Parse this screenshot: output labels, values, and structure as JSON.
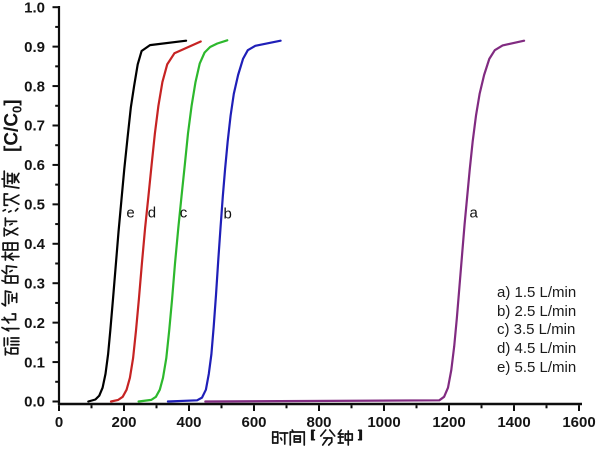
{
  "chart_data": {
    "type": "line",
    "title": "",
    "xlabel": "时间【分钟】",
    "ylabel": "硫化氢的相对浓度 [C/C0]",
    "ylabel_cjk": "硫化氢的相对浓度",
    "ylabel_unit": {
      "pre": "[C/C",
      "sub": "0",
      "post": "]"
    },
    "xlim": [
      0,
      1600
    ],
    "ylim": [
      0.0,
      1.0
    ],
    "x_major_step": 200,
    "x_minor_step": 100,
    "y_major_step": 0.1,
    "y_minor_step": 0.05,
    "xticks": [
      "0",
      "200",
      "400",
      "600",
      "800",
      "1000",
      "1200",
      "1400",
      "1600"
    ],
    "yticks": [
      "0.0",
      "0.1",
      "0.2",
      "0.3",
      "0.4",
      "0.5",
      "0.6",
      "0.7",
      "0.8",
      "0.9",
      "1.0"
    ],
    "grid": false,
    "plateau": 0.915,
    "series": [
      {
        "name": "e",
        "flow": "5.5 L/min",
        "color": "#000000",
        "points": [
          [
            90,
            0
          ],
          [
            112,
            0.005
          ],
          [
            124,
            0.015
          ],
          [
            134,
            0.035
          ],
          [
            143,
            0.07
          ],
          [
            151,
            0.12
          ],
          [
            158,
            0.18
          ],
          [
            166,
            0.26
          ],
          [
            174,
            0.34
          ],
          [
            183,
            0.43
          ],
          [
            192,
            0.51
          ],
          [
            201,
            0.59
          ],
          [
            211,
            0.67
          ],
          [
            221,
            0.745
          ],
          [
            231,
            0.8
          ],
          [
            242,
            0.855
          ],
          [
            254,
            0.889
          ],
          [
            280,
            0.904
          ],
          [
            391,
            0.915
          ]
        ]
      },
      {
        "name": "d",
        "flow": "4.5 L/min",
        "color": "#c62323",
        "points": [
          [
            160,
            0
          ],
          [
            182,
            0.004
          ],
          [
            196,
            0.012
          ],
          [
            208,
            0.03
          ],
          [
            218,
            0.06
          ],
          [
            228,
            0.11
          ],
          [
            237,
            0.18
          ],
          [
            246,
            0.26
          ],
          [
            255,
            0.35
          ],
          [
            265,
            0.44
          ],
          [
            275,
            0.52
          ],
          [
            285,
            0.6
          ],
          [
            295,
            0.68
          ],
          [
            306,
            0.75
          ],
          [
            318,
            0.81
          ],
          [
            333,
            0.855
          ],
          [
            355,
            0.883
          ],
          [
            436,
            0.913
          ]
        ]
      },
      {
        "name": "c",
        "flow": "3.5 L/min",
        "color": "#2db82d",
        "points": [
          [
            245,
            0
          ],
          [
            284,
            0.004
          ],
          [
            298,
            0.012
          ],
          [
            310,
            0.03
          ],
          [
            320,
            0.06
          ],
          [
            330,
            0.11
          ],
          [
            339,
            0.18
          ],
          [
            348,
            0.26
          ],
          [
            357,
            0.35
          ],
          [
            367,
            0.44
          ],
          [
            377,
            0.52
          ],
          [
            387,
            0.6
          ],
          [
            397,
            0.68
          ],
          [
            408,
            0.75
          ],
          [
            420,
            0.81
          ],
          [
            433,
            0.857
          ],
          [
            448,
            0.885
          ],
          [
            465,
            0.899
          ],
          [
            487,
            0.908
          ],
          [
            518,
            0.916
          ]
        ]
      },
      {
        "name": "b",
        "flow": "2.5 L/min",
        "color": "#1f1fb8",
        "points": [
          [
            335,
            0
          ],
          [
            425,
            0.003
          ],
          [
            440,
            0.01
          ],
          [
            452,
            0.03
          ],
          [
            461,
            0.07
          ],
          [
            469,
            0.12
          ],
          [
            476,
            0.19
          ],
          [
            483,
            0.27
          ],
          [
            490,
            0.36
          ],
          [
            497,
            0.44
          ],
          [
            504,
            0.52
          ],
          [
            511,
            0.59
          ],
          [
            519,
            0.66
          ],
          [
            528,
            0.725
          ],
          [
            538,
            0.78
          ],
          [
            551,
            0.828
          ],
          [
            566,
            0.869
          ],
          [
            581,
            0.891
          ],
          [
            604,
            0.902
          ],
          [
            682,
            0.915
          ]
        ]
      },
      {
        "name": "a",
        "flow": "1.5 L/min",
        "color": "#812b81",
        "points": [
          [
            450,
            0
          ],
          [
            1170,
            0.003
          ],
          [
            1185,
            0.012
          ],
          [
            1197,
            0.035
          ],
          [
            1207,
            0.08
          ],
          [
            1216,
            0.14
          ],
          [
            1224,
            0.21
          ],
          [
            1232,
            0.29
          ],
          [
            1240,
            0.37
          ],
          [
            1248,
            0.45
          ],
          [
            1256,
            0.52
          ],
          [
            1264,
            0.59
          ],
          [
            1273,
            0.66
          ],
          [
            1283,
            0.725
          ],
          [
            1294,
            0.78
          ],
          [
            1308,
            0.828
          ],
          [
            1324,
            0.869
          ],
          [
            1341,
            0.891
          ],
          [
            1365,
            0.903
          ],
          [
            1431,
            0.915
          ]
        ]
      }
    ],
    "curve_labels": [
      {
        "text": "e",
        "x": 220,
        "v": 0.478
      },
      {
        "text": "d",
        "x": 286,
        "v": 0.478
      },
      {
        "text": "c",
        "x": 383,
        "v": 0.478
      },
      {
        "text": "b",
        "x": 519,
        "v": 0.476
      },
      {
        "text": "a",
        "x": 1276,
        "v": 0.478
      }
    ],
    "legend": {
      "position": "lower right",
      "items": [
        "a) 1.5 L/min",
        "b) 2.5 L/min",
        "c) 3.5 L/min",
        "d) 4.5 L/min",
        "e) 5.5 L/min"
      ]
    }
  }
}
